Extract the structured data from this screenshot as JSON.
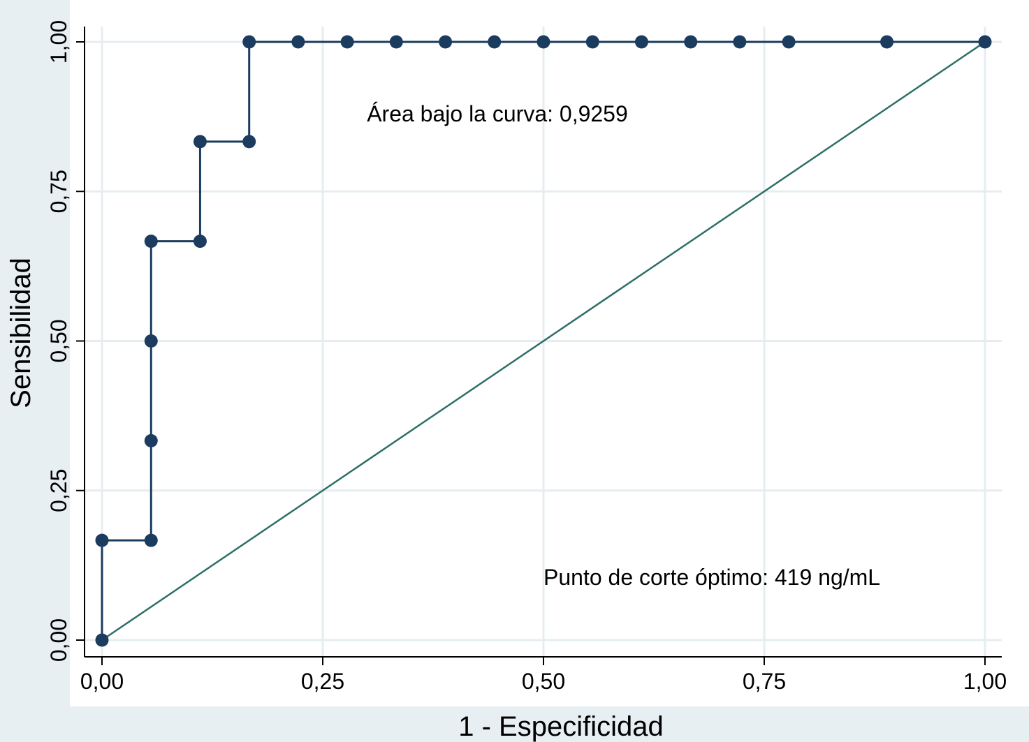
{
  "chart_data": {
    "type": "line",
    "title": "",
    "xlabel": "1 - Especificidad",
    "ylabel": "Sensibilidad",
    "xlim": [
      0,
      1
    ],
    "ylim": [
      0,
      1
    ],
    "x_ticks": [
      0,
      0.25,
      0.5,
      0.75,
      1
    ],
    "x_tick_labels": [
      "0,00",
      "0,25",
      "0,50",
      "0,75",
      "1,00"
    ],
    "y_ticks": [
      0,
      0.25,
      0.5,
      0.75,
      1
    ],
    "y_tick_labels": [
      "0,00",
      "0,25",
      "0,50",
      "0,75",
      "1,00"
    ],
    "grid": true,
    "series": [
      {
        "name": "",
        "style": "step-with-markers",
        "points": [
          [
            0.0,
            0.0
          ],
          [
            0.0,
            0.1667
          ],
          [
            0.0556,
            0.1667
          ],
          [
            0.0556,
            0.3333
          ],
          [
            0.0556,
            0.5
          ],
          [
            0.0556,
            0.6667
          ],
          [
            0.1111,
            0.6667
          ],
          [
            0.1111,
            0.8333
          ],
          [
            0.1667,
            0.8333
          ],
          [
            0.1667,
            1.0
          ],
          [
            0.2222,
            1.0
          ],
          [
            0.2778,
            1.0
          ],
          [
            0.3333,
            1.0
          ],
          [
            0.3889,
            1.0
          ],
          [
            0.4444,
            1.0
          ],
          [
            0.5,
            1.0
          ],
          [
            0.5556,
            1.0
          ],
          [
            0.6111,
            1.0
          ],
          [
            0.6667,
            1.0
          ],
          [
            0.7222,
            1.0
          ],
          [
            0.7778,
            1.0
          ],
          [
            0.8889,
            1.0
          ],
          [
            1.0,
            1.0
          ]
        ]
      },
      {
        "name": "",
        "style": "reference-line",
        "points": [
          [
            0,
            0
          ],
          [
            1,
            1
          ]
        ]
      }
    ],
    "annotations": [
      {
        "text": "Área bajo la curva: 0,9259",
        "x": 0.3,
        "y": 0.867
      },
      {
        "text": "Punto de corte óptimo: 419 ng/mL",
        "x": 0.5,
        "y": 0.092
      }
    ]
  },
  "colors": {
    "background_outer": "#e8eff3",
    "plot_background": "#ffffff",
    "grid": "#e6edf1",
    "curve": "#1b3c5e",
    "reference_line": "#2f6e66",
    "axis": "#000000"
  }
}
